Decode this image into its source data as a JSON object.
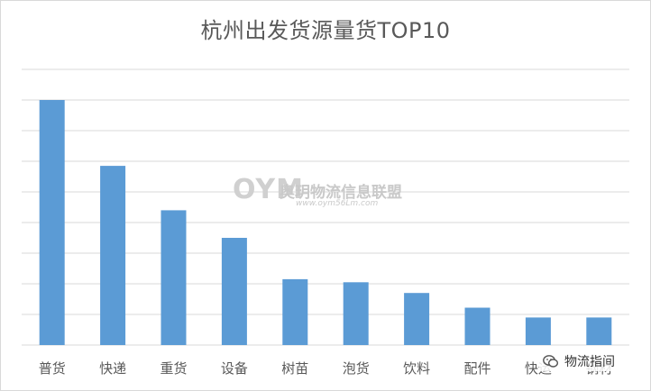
{
  "chart_data": {
    "type": "bar",
    "title": "杭州出发货源量货TOP10",
    "categories": [
      "普货",
      "快递",
      "重货",
      "设备",
      "树苗",
      "泡货",
      "饮料",
      "配件",
      "快运",
      "钢材"
    ],
    "values": [
      8.0,
      5.85,
      4.4,
      3.5,
      2.15,
      2.05,
      1.7,
      1.22,
      0.9,
      0.9
    ],
    "ylim": [
      0,
      9
    ],
    "grid": true,
    "color": "#5b9bd5"
  },
  "watermark": {
    "logo": "OYM",
    "name": "奥玥物流信息联盟",
    "url": "www.oym56Lm.com"
  },
  "brand": {
    "label": "物流指间",
    "icon": "wechat-icon"
  }
}
